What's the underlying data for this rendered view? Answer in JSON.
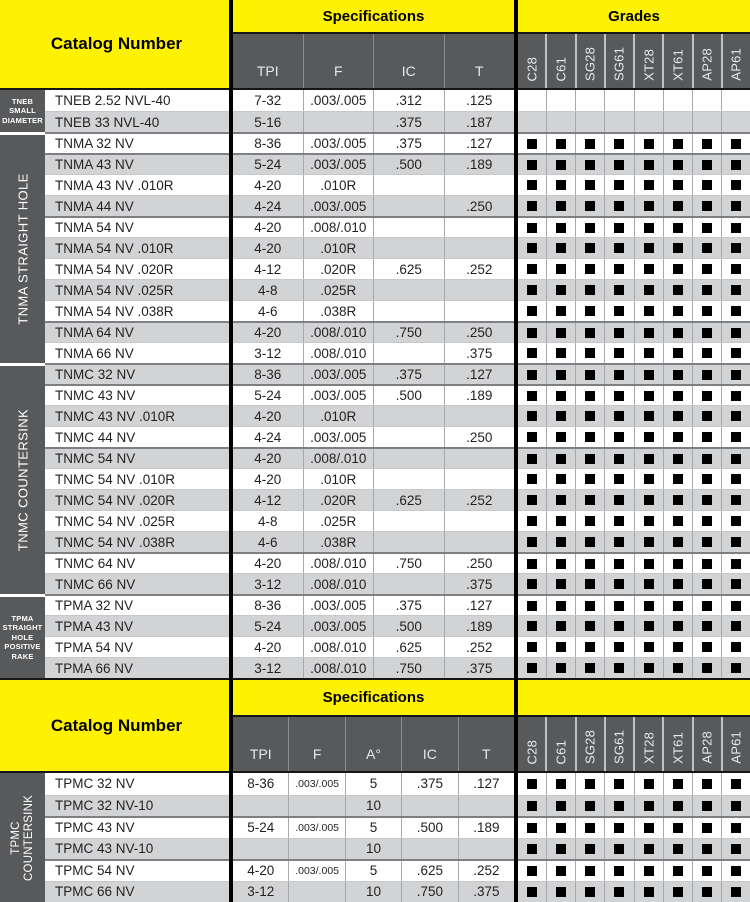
{
  "labels": {
    "catalog_number": "Catalog Number",
    "specifications": "Specifications",
    "grades": "Grades"
  },
  "colors": {
    "accent_yellow": "#FFF200",
    "header_gray": "#58595B",
    "row_alt_gray": "#D1D3D4",
    "marker_black": "#000000"
  },
  "grade_columns": [
    "C28",
    "C61",
    "SG28",
    "SG61",
    "XT28",
    "XT61",
    "AP28",
    "AP61"
  ],
  "sections": [
    {
      "spec_columns": [
        "TPI",
        "F",
        "IC",
        "T"
      ],
      "groups": [
        {
          "sidebar": {
            "vertical": false,
            "lines": [
              "TNEB",
              "SMALL",
              "DIAMETER"
            ]
          },
          "rows": [
            {
              "c": "TNEB 2.52 NVL-40",
              "s": [
                "7-32",
                ".003/.005",
                ".312",
                ".125"
              ],
              "g": false
            },
            {
              "c": "TNEB 33 NVL-40",
              "s": [
                "5-16",
                "",
                ".375",
                ".187"
              ],
              "g": false
            }
          ]
        },
        {
          "sidebar": {
            "vertical": true,
            "lines": [
              "TNMA STRAIGHT HOLE"
            ]
          },
          "rows": [
            {
              "c": "TNMA 32 NV",
              "s": [
                "8-36",
                ".003/.005",
                ".375",
                ".127"
              ],
              "g": true
            },
            {
              "c": "TNMA 43 NV",
              "s": [
                "5-24",
                ".003/.005",
                ".500",
                ".189"
              ],
              "g": true,
              "sep": true
            },
            {
              "c": "TNMA 43 NV .010R",
              "s": [
                "4-20",
                ".010R",
                "",
                ""
              ],
              "g": true
            },
            {
              "c": "TNMA 44 NV",
              "s": [
                "4-24",
                ".003/.005",
                "",
                ".250"
              ],
              "g": true
            },
            {
              "c": "TNMA 54 NV",
              "s": [
                "4-20",
                ".008/.010",
                "",
                ""
              ],
              "g": true,
              "sep": true
            },
            {
              "c": "TNMA 54 NV .010R",
              "s": [
                "4-20",
                ".010R",
                "",
                ""
              ],
              "g": true
            },
            {
              "c": "TNMA 54 NV .020R",
              "s": [
                "4-12",
                ".020R",
                ".625",
                ".252"
              ],
              "g": true
            },
            {
              "c": "TNMA 54 NV .025R",
              "s": [
                "4-8",
                ".025R",
                "",
                ""
              ],
              "g": true
            },
            {
              "c": "TNMA 54 NV .038R",
              "s": [
                "4-6",
                ".038R",
                "",
                ""
              ],
              "g": true
            },
            {
              "c": "TNMA 64 NV",
              "s": [
                "4-20",
                ".008/.010",
                ".750",
                ".250"
              ],
              "g": true,
              "sep": true
            },
            {
              "c": "TNMA 66 NV",
              "s": [
                "3-12",
                ".008/.010",
                "",
                ".375"
              ],
              "g": true
            }
          ]
        },
        {
          "sidebar": {
            "vertical": true,
            "lines": [
              "TNMC COUNTERSINK"
            ]
          },
          "rows": [
            {
              "c": "TNMC 32 NV",
              "s": [
                "8-36",
                ".003/.005",
                ".375",
                ".127"
              ],
              "g": true
            },
            {
              "c": "TNMC 43 NV",
              "s": [
                "5-24",
                ".003/.005",
                ".500",
                ".189"
              ],
              "g": true,
              "sep": true
            },
            {
              "c": "TNMC 43 NV .010R",
              "s": [
                "4-20",
                ".010R",
                "",
                ""
              ],
              "g": true
            },
            {
              "c": "TNMC 44 NV",
              "s": [
                "4-24",
                ".003/.005",
                "",
                ".250"
              ],
              "g": true
            },
            {
              "c": "TNMC 54 NV",
              "s": [
                "4-20",
                ".008/.010",
                "",
                ""
              ],
              "g": true,
              "sep": true
            },
            {
              "c": "TNMC 54 NV .010R",
              "s": [
                "4-20",
                ".010R",
                "",
                ""
              ],
              "g": true
            },
            {
              "c": "TNMC 54 NV .020R",
              "s": [
                "4-12",
                ".020R",
                ".625",
                ".252"
              ],
              "g": true
            },
            {
              "c": "TNMC 54 NV .025R",
              "s": [
                "4-8",
                ".025R",
                "",
                ""
              ],
              "g": true
            },
            {
              "c": "TNMC 54 NV .038R",
              "s": [
                "4-6",
                ".038R",
                "",
                ""
              ],
              "g": true
            },
            {
              "c": "TNMC 64 NV",
              "s": [
                "4-20",
                ".008/.010",
                ".750",
                ".250"
              ],
              "g": true,
              "sep": true
            },
            {
              "c": "TNMC 66 NV",
              "s": [
                "3-12",
                ".008/.010",
                "",
                ".375"
              ],
              "g": true
            }
          ]
        },
        {
          "sidebar": {
            "vertical": false,
            "lines": [
              "TPMA",
              "STRAIGHT",
              "HOLE",
              "POSITIVE",
              "RAKE"
            ]
          },
          "rows": [
            {
              "c": "TPMA 32 NV",
              "s": [
                "8-36",
                ".003/.005",
                ".375",
                ".127"
              ],
              "g": true
            },
            {
              "c": "TPMA 43 NV",
              "s": [
                "5-24",
                ".003/.005",
                ".500",
                ".189"
              ],
              "g": true
            },
            {
              "c": "TPMA 54 NV",
              "s": [
                "4-20",
                ".008/.010",
                ".625",
                ".252"
              ],
              "g": true
            },
            {
              "c": "TPMA 66 NV",
              "s": [
                "3-12",
                ".008/.010",
                ".750",
                ".375"
              ],
              "g": true
            }
          ]
        }
      ]
    },
    {
      "spec_columns": [
        "TPI",
        "F",
        "A°",
        "IC",
        "T"
      ],
      "groups": [
        {
          "sidebar": {
            "vertical": true,
            "lines": [
              "TPMC",
              "COUNTERSINK"
            ]
          },
          "rows": [
            {
              "c": "TPMC 32 NV",
              "s": [
                "8-36",
                ".003/.005",
                "5",
                ".375",
                ".127"
              ],
              "g": true
            },
            {
              "c": "TPMC 32 NV-10",
              "s": [
                "",
                "",
                "10",
                "",
                ""
              ],
              "g": true
            },
            {
              "c": "TPMC 43 NV",
              "s": [
                "5-24",
                ".003/.005",
                "5",
                ".500",
                ".189"
              ],
              "g": true,
              "sep": true
            },
            {
              "c": "TPMC 43 NV-10",
              "s": [
                "",
                "",
                "10",
                "",
                ""
              ],
              "g": true
            },
            {
              "c": "TPMC 54 NV",
              "s": [
                "4-20",
                ".003/.005",
                "5",
                ".625",
                ".252"
              ],
              "g": true,
              "sep": true
            },
            {
              "c": "TPMC 66 NV",
              "s": [
                "3-12",
                "",
                "10",
                ".750",
                ".375"
              ],
              "g": true
            }
          ]
        }
      ]
    }
  ]
}
